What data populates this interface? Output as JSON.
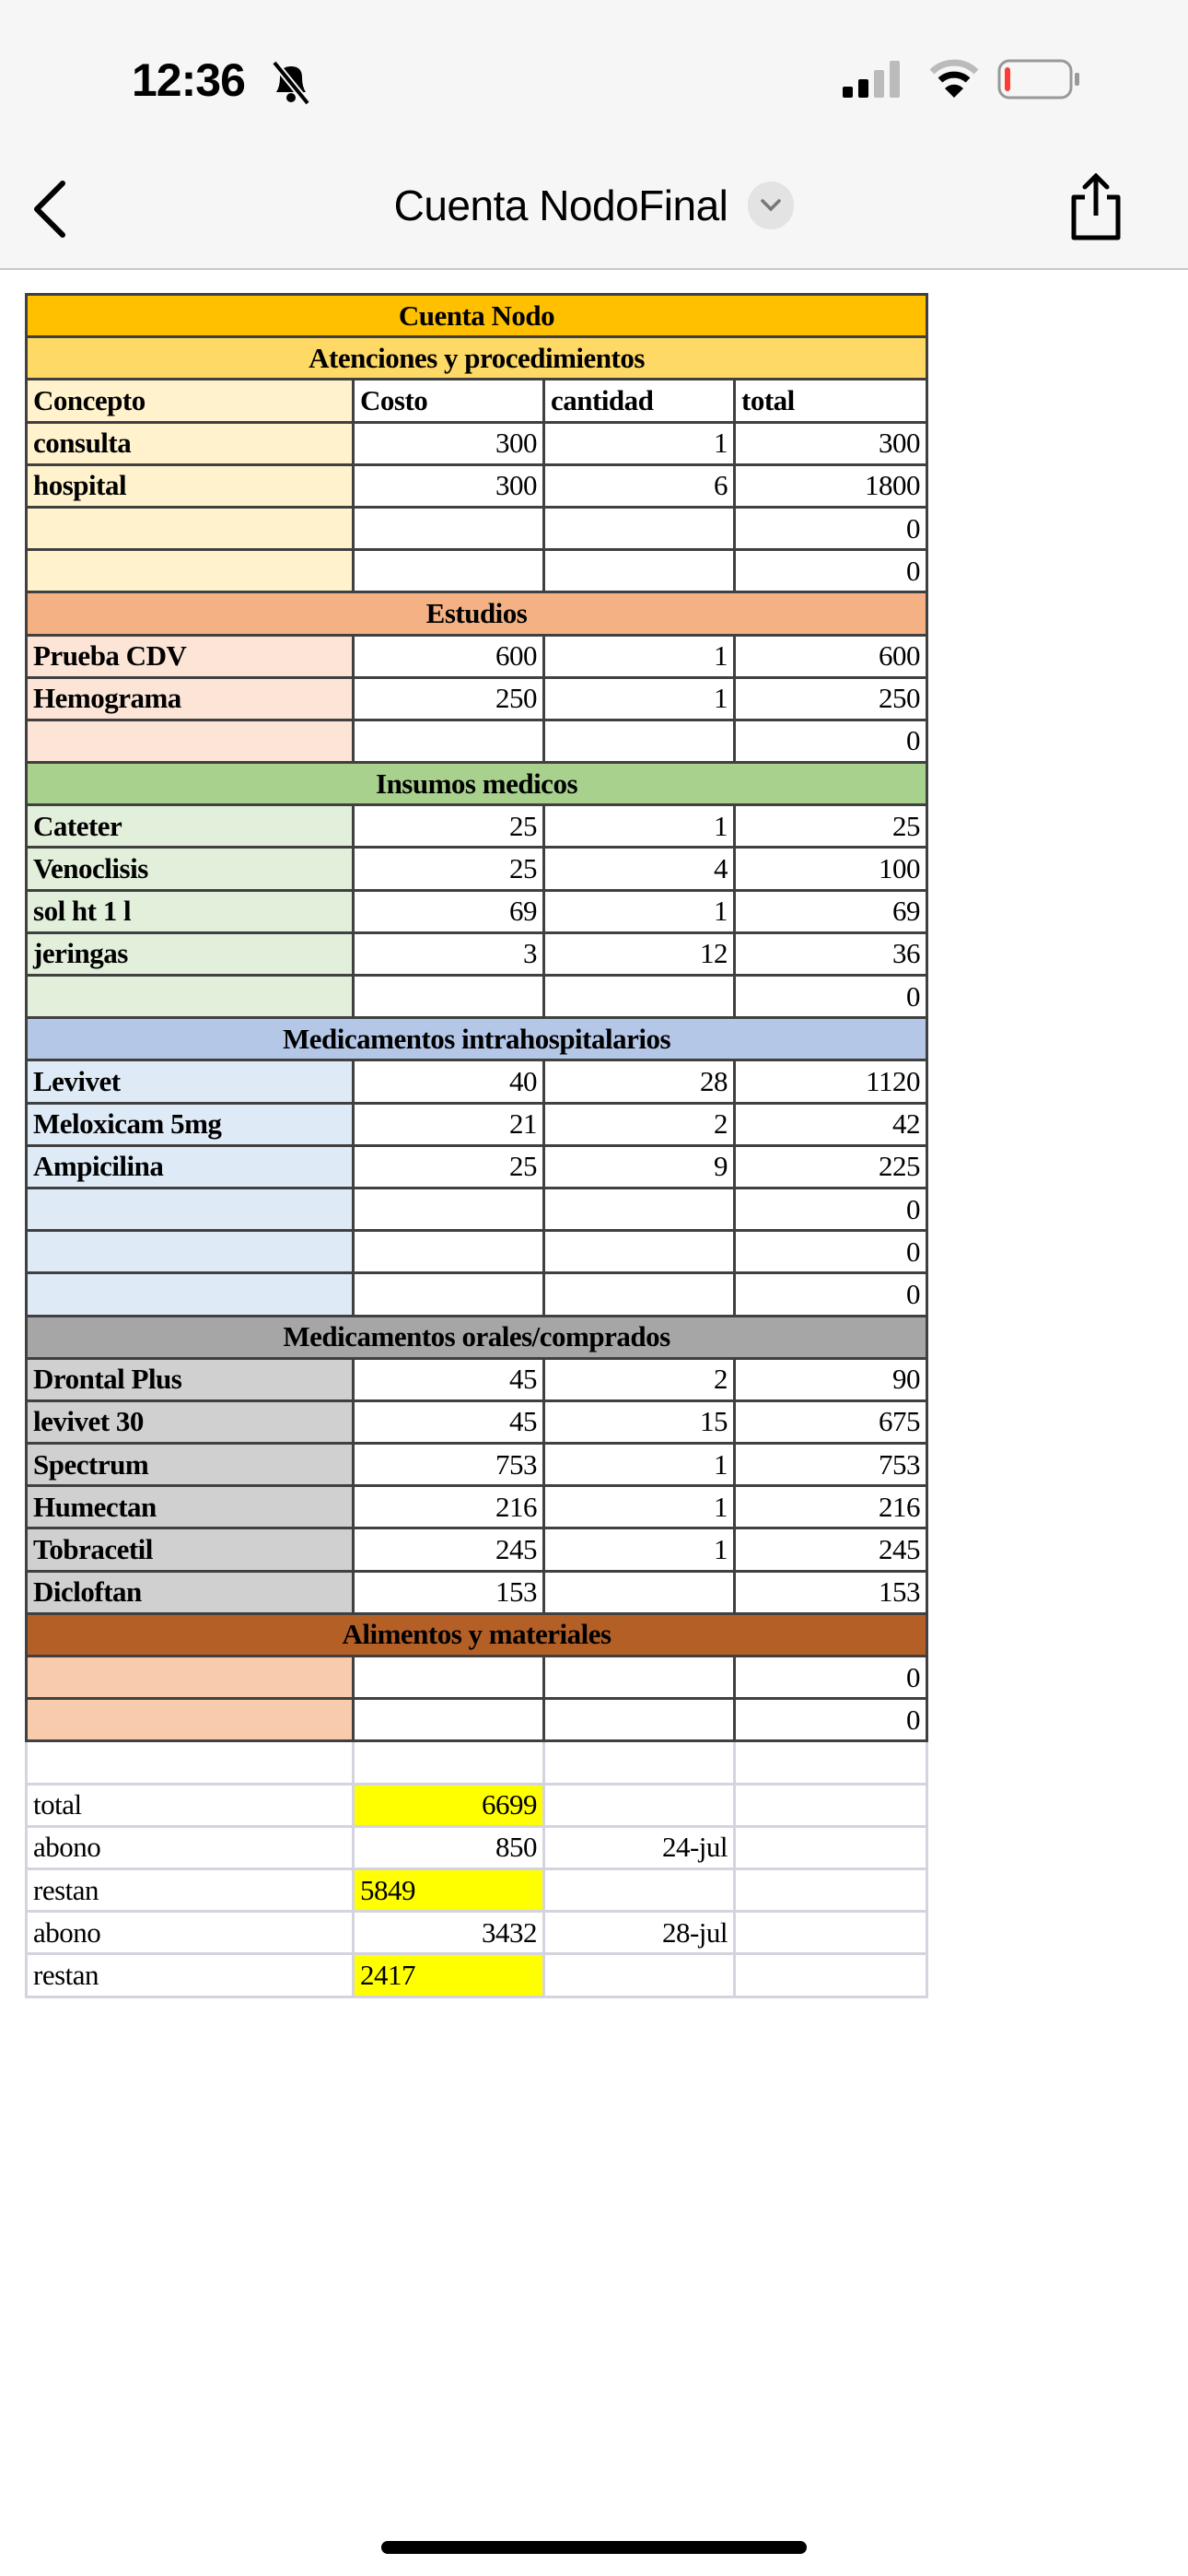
{
  "status_bar": {
    "time": "12:36",
    "icons": [
      "bell-slash-icon",
      "signal-icon",
      "wifi-icon",
      "battery-low-icon"
    ],
    "battery_color": "#ff3b30"
  },
  "nav": {
    "title": "Cuenta NodoFinal",
    "back_icon": "chevron-left-icon",
    "menu_icon": "chevron-down-icon",
    "share_icon": "share-icon"
  },
  "sheet": {
    "title": "Cuenta Nodo",
    "title_color": "#ffc000",
    "columns": [
      "Concepto",
      "Costo",
      "cantidad",
      "total"
    ],
    "sections": [
      {
        "name": "Atenciones y procedimientos",
        "header_color": "#ffd966",
        "label_color": "#fff2cc",
        "show_columns": true,
        "rows": [
          [
            "consulta",
            "300",
            "1",
            "300"
          ],
          [
            "hospital",
            "300",
            "6",
            "1800"
          ],
          [
            "",
            "",
            "",
            "0"
          ],
          [
            "",
            "",
            "",
            "0"
          ]
        ]
      },
      {
        "name": "Estudios",
        "header_color": "#f4b183",
        "label_color": "#fce4d6",
        "rows": [
          [
            "Prueba CDV",
            "600",
            "1",
            "600"
          ],
          [
            "Hemograma",
            "250",
            "1",
            "250"
          ],
          [
            "",
            "",
            "",
            "0"
          ]
        ]
      },
      {
        "name": "Insumos medicos",
        "header_color": "#a9d18e",
        "label_color": "#e2efda",
        "rows": [
          [
            "Cateter",
            "25",
            "1",
            "25"
          ],
          [
            "Venoclisis",
            "25",
            "4",
            "100"
          ],
          [
            "sol ht 1 l",
            "69",
            "1",
            "69"
          ],
          [
            "jeringas",
            "3",
            "12",
            "36"
          ],
          [
            "",
            "",
            "",
            "0"
          ]
        ]
      },
      {
        "name": "Medicamentos intrahospitalarios",
        "header_color": "#b4c7e7",
        "label_color": "#deebf7",
        "rows": [
          [
            "Levivet",
            "40",
            "28",
            "1120"
          ],
          [
            "Meloxicam 5mg",
            "21",
            "2",
            "42"
          ],
          [
            "Ampicilina",
            "25",
            "9",
            "225"
          ],
          [
            "",
            "",
            "",
            "0"
          ],
          [
            "",
            "",
            "",
            "0"
          ],
          [
            "",
            "",
            "",
            "0"
          ]
        ]
      },
      {
        "name": "Medicamentos orales/comprados",
        "header_color": "#a6a6a6",
        "label_color": "#d0d0d0",
        "rows": [
          [
            "Drontal Plus",
            "45",
            "2",
            "90"
          ],
          [
            "levivet 30",
            "45",
            "15",
            "675"
          ],
          [
            "Spectrum",
            "753",
            "1",
            "753"
          ],
          [
            "Humectan",
            "216",
            "1",
            "216"
          ],
          [
            "Tobracetil",
            "245",
            "1",
            "245"
          ],
          [
            "Dicloftan",
            "153",
            "",
            "153"
          ]
        ]
      },
      {
        "name": "Alimentos y materiales",
        "header_color": "#b45f26",
        "label_color": "#f8cbad",
        "rows": [
          [
            "",
            "",
            "",
            "0"
          ],
          [
            "",
            "",
            "",
            "0"
          ]
        ]
      }
    ],
    "summary": [
      {
        "label": "",
        "amount": "",
        "date": "",
        "highlight": false
      },
      {
        "label": "total",
        "amount": "6699",
        "date": "",
        "highlight": true,
        "align": "right"
      },
      {
        "label": "abono",
        "amount": "850",
        "date": "24-jul",
        "highlight": false,
        "align": "right"
      },
      {
        "label": "restan",
        "amount": "5849",
        "date": "",
        "highlight": true,
        "align": "left"
      },
      {
        "label": "abono",
        "amount": "3432",
        "date": "28-jul",
        "highlight": false,
        "align": "right"
      },
      {
        "label": "restan",
        "amount": "2417",
        "date": "",
        "highlight": true,
        "align": "left"
      }
    ],
    "highlight_color": "#ffff00"
  }
}
